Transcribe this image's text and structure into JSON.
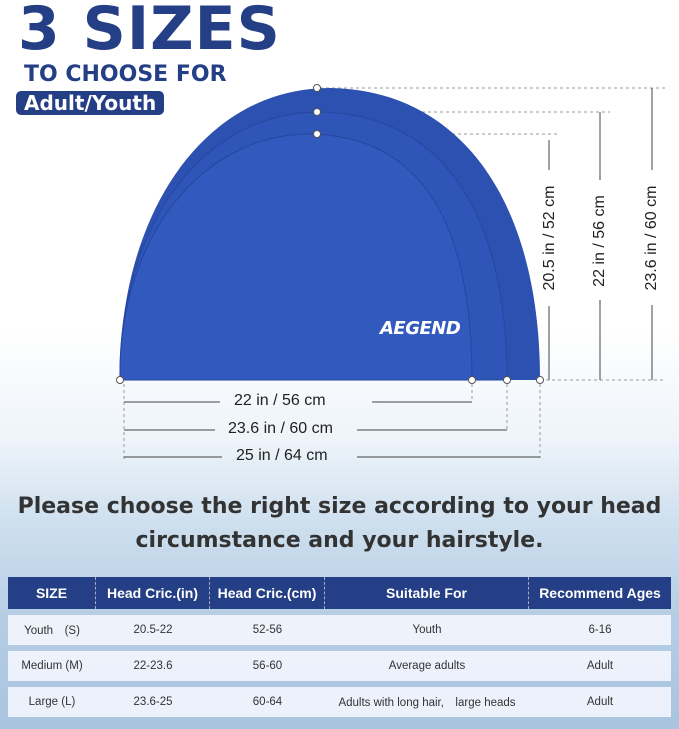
{
  "header": {
    "title": "3 SIZES",
    "subtitle": "TO CHOOSE FOR",
    "badge": "Adult/Youth"
  },
  "brand": "AEGEND",
  "cap_color": "#2f55b8",
  "dimensions": {
    "widths": [
      "22 in / 56 cm",
      "23.6 in / 60 cm",
      "25 in / 64 cm"
    ],
    "heights": [
      "20.5 in / 52 cm",
      "22 in / 56 cm",
      "23.6 in / 60 cm"
    ]
  },
  "message": {
    "line1": "Please choose the right size according to your head",
    "line2": "circumstance and your hairstyle."
  },
  "table": {
    "headers": [
      "SIZE",
      "Head Cric.(in)",
      "Head Cric.(cm)",
      "Suitable For",
      "Recommend Ages"
    ],
    "rows": [
      [
        "Youth　(S)",
        "20.5-22",
        "52-56",
        "Youth",
        "6-16"
      ],
      [
        "Medium (M)",
        "22-23.6",
        "56-60",
        "Average adults",
        "Adult"
      ],
      [
        "Large (L)",
        "23.6-25",
        "60-64",
        "Adults with long hair,　large heads",
        "Adult"
      ]
    ]
  }
}
